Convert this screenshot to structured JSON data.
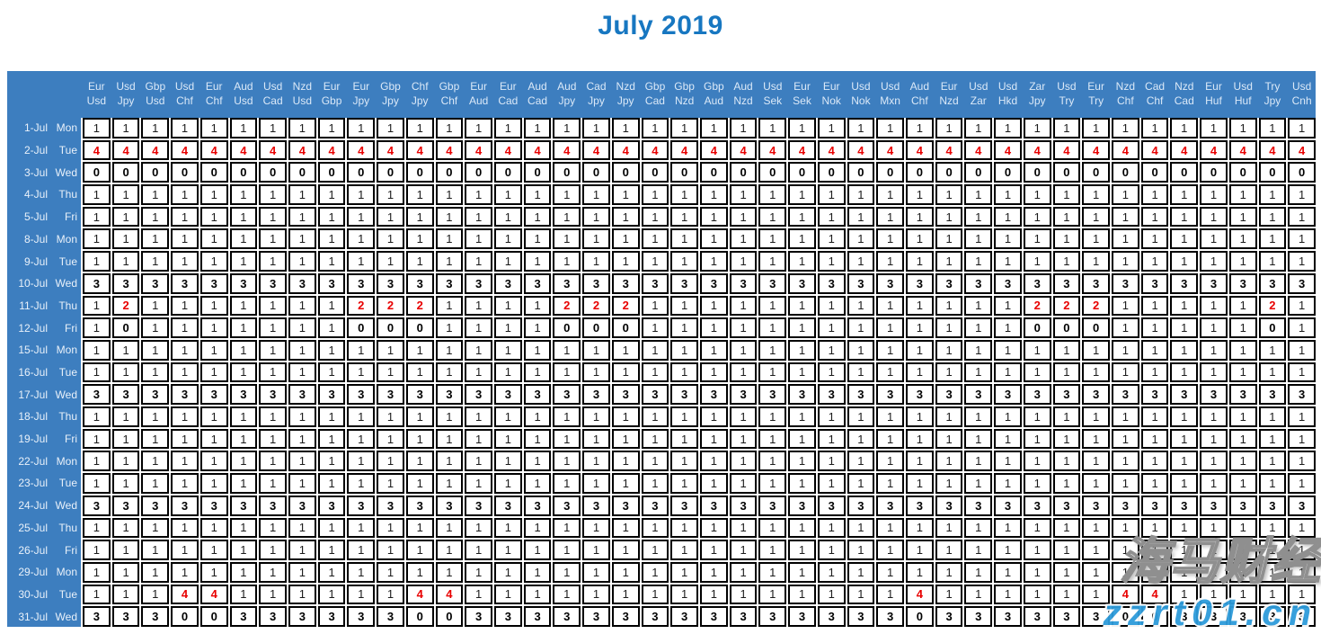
{
  "title": "July 2019",
  "colors": {
    "header_blue": "#3d7ebf",
    "title_blue": "#1777c1",
    "value_red": "#e80000",
    "value_black": "#000000",
    "header_text": "#dbe9f8",
    "cell_border": "#000000"
  },
  "watermark": {
    "cn": "海马财经",
    "site": "zzrt01.cn"
  },
  "table": {
    "pairs": [
      [
        "Eur",
        "Usd"
      ],
      [
        "Usd",
        "Jpy"
      ],
      [
        "Gbp",
        "Usd"
      ],
      [
        "Usd",
        "Chf"
      ],
      [
        "Eur",
        "Chf"
      ],
      [
        "Aud",
        "Usd"
      ],
      [
        "Usd",
        "Cad"
      ],
      [
        "Nzd",
        "Usd"
      ],
      [
        "Eur",
        "Gbp"
      ],
      [
        "Eur",
        "Jpy"
      ],
      [
        "Gbp",
        "Jpy"
      ],
      [
        "Chf",
        "Jpy"
      ],
      [
        "Gbp",
        "Chf"
      ],
      [
        "Eur",
        "Aud"
      ],
      [
        "Eur",
        "Cad"
      ],
      [
        "Aud",
        "Cad"
      ],
      [
        "Aud",
        "Jpy"
      ],
      [
        "Cad",
        "Jpy"
      ],
      [
        "Nzd",
        "Jpy"
      ],
      [
        "Gbp",
        "Cad"
      ],
      [
        "Gbp",
        "Nzd"
      ],
      [
        "Gbp",
        "Aud"
      ],
      [
        "Aud",
        "Nzd"
      ],
      [
        "Usd",
        "Sek"
      ],
      [
        "Eur",
        "Sek"
      ],
      [
        "Eur",
        "Nok"
      ],
      [
        "Usd",
        "Nok"
      ],
      [
        "Usd",
        "Mxn"
      ],
      [
        "Aud",
        "Chf"
      ],
      [
        "Eur",
        "Nzd"
      ],
      [
        "Usd",
        "Zar"
      ],
      [
        "Usd",
        "Hkd"
      ],
      [
        "Zar",
        "Jpy"
      ],
      [
        "Usd",
        "Try"
      ],
      [
        "Eur",
        "Try"
      ],
      [
        "Nzd",
        "Chf"
      ],
      [
        "Cad",
        "Chf"
      ],
      [
        "Nzd",
        "Cad"
      ],
      [
        "Eur",
        "Huf"
      ],
      [
        "Usd",
        "Huf"
      ],
      [
        "Try",
        "Jpy"
      ],
      [
        "Usd",
        "Cnh"
      ]
    ],
    "rows": [
      {
        "date": "1-Jul",
        "day": "Mon",
        "values": [
          1,
          1,
          1,
          1,
          1,
          1,
          1,
          1,
          1,
          1,
          1,
          1,
          1,
          1,
          1,
          1,
          1,
          1,
          1,
          1,
          1,
          1,
          1,
          1,
          1,
          1,
          1,
          1,
          1,
          1,
          1,
          1,
          1,
          1,
          1,
          1,
          1,
          1,
          1,
          1,
          1,
          1
        ]
      },
      {
        "date": "2-Jul",
        "day": "Tue",
        "values": [
          4,
          4,
          4,
          4,
          4,
          4,
          4,
          4,
          4,
          4,
          4,
          4,
          4,
          4,
          4,
          4,
          4,
          4,
          4,
          4,
          4,
          4,
          4,
          4,
          4,
          4,
          4,
          4,
          4,
          4,
          4,
          4,
          4,
          4,
          4,
          4,
          4,
          4,
          4,
          4,
          4,
          4
        ]
      },
      {
        "date": "3-Jul",
        "day": "Wed",
        "values": [
          0,
          0,
          0,
          0,
          0,
          0,
          0,
          0,
          0,
          0,
          0,
          0,
          0,
          0,
          0,
          0,
          0,
          0,
          0,
          0,
          0,
          0,
          0,
          0,
          0,
          0,
          0,
          0,
          0,
          0,
          0,
          0,
          0,
          0,
          0,
          0,
          0,
          0,
          0,
          0,
          0,
          0
        ]
      },
      {
        "date": "4-Jul",
        "day": "Thu",
        "values": [
          1,
          1,
          1,
          1,
          1,
          1,
          1,
          1,
          1,
          1,
          1,
          1,
          1,
          1,
          1,
          1,
          1,
          1,
          1,
          1,
          1,
          1,
          1,
          1,
          1,
          1,
          1,
          1,
          1,
          1,
          1,
          1,
          1,
          1,
          1,
          1,
          1,
          1,
          1,
          1,
          1,
          1
        ]
      },
      {
        "date": "5-Jul",
        "day": "Fri",
        "values": [
          1,
          1,
          1,
          1,
          1,
          1,
          1,
          1,
          1,
          1,
          1,
          1,
          1,
          1,
          1,
          1,
          1,
          1,
          1,
          1,
          1,
          1,
          1,
          1,
          1,
          1,
          1,
          1,
          1,
          1,
          1,
          1,
          1,
          1,
          1,
          1,
          1,
          1,
          1,
          1,
          1,
          1
        ]
      },
      {
        "date": "8-Jul",
        "day": "Mon",
        "values": [
          1,
          1,
          1,
          1,
          1,
          1,
          1,
          1,
          1,
          1,
          1,
          1,
          1,
          1,
          1,
          1,
          1,
          1,
          1,
          1,
          1,
          1,
          1,
          1,
          1,
          1,
          1,
          1,
          1,
          1,
          1,
          1,
          1,
          1,
          1,
          1,
          1,
          1,
          1,
          1,
          1,
          1
        ]
      },
      {
        "date": "9-Jul",
        "day": "Tue",
        "values": [
          1,
          1,
          1,
          1,
          1,
          1,
          1,
          1,
          1,
          1,
          1,
          1,
          1,
          1,
          1,
          1,
          1,
          1,
          1,
          1,
          1,
          1,
          1,
          1,
          1,
          1,
          1,
          1,
          1,
          1,
          1,
          1,
          1,
          1,
          1,
          1,
          1,
          1,
          1,
          1,
          1,
          1
        ]
      },
      {
        "date": "10-Jul",
        "day": "Wed",
        "values": [
          3,
          3,
          3,
          3,
          3,
          3,
          3,
          3,
          3,
          3,
          3,
          3,
          3,
          3,
          3,
          3,
          3,
          3,
          3,
          3,
          3,
          3,
          3,
          3,
          3,
          3,
          3,
          3,
          3,
          3,
          3,
          3,
          3,
          3,
          3,
          3,
          3,
          3,
          3,
          3,
          3,
          3
        ]
      },
      {
        "date": "11-Jul",
        "day": "Thu",
        "values": [
          1,
          2,
          1,
          1,
          1,
          1,
          1,
          1,
          1,
          2,
          2,
          2,
          1,
          1,
          1,
          1,
          2,
          2,
          2,
          1,
          1,
          1,
          1,
          1,
          1,
          1,
          1,
          1,
          1,
          1,
          1,
          1,
          2,
          2,
          2,
          1,
          1,
          1,
          1,
          1,
          2,
          1
        ]
      },
      {
        "date": "12-Jul",
        "day": "Fri",
        "values": [
          1,
          0,
          1,
          1,
          1,
          1,
          1,
          1,
          1,
          0,
          0,
          0,
          1,
          1,
          1,
          1,
          0,
          0,
          0,
          1,
          1,
          1,
          1,
          1,
          1,
          1,
          1,
          1,
          1,
          1,
          1,
          1,
          0,
          0,
          0,
          1,
          1,
          1,
          1,
          1,
          0,
          1
        ]
      },
      {
        "date": "15-Jul",
        "day": "Mon",
        "values": [
          1,
          1,
          1,
          1,
          1,
          1,
          1,
          1,
          1,
          1,
          1,
          1,
          1,
          1,
          1,
          1,
          1,
          1,
          1,
          1,
          1,
          1,
          1,
          1,
          1,
          1,
          1,
          1,
          1,
          1,
          1,
          1,
          1,
          1,
          1,
          1,
          1,
          1,
          1,
          1,
          1,
          1
        ]
      },
      {
        "date": "16-Jul",
        "day": "Tue",
        "values": [
          1,
          1,
          1,
          1,
          1,
          1,
          1,
          1,
          1,
          1,
          1,
          1,
          1,
          1,
          1,
          1,
          1,
          1,
          1,
          1,
          1,
          1,
          1,
          1,
          1,
          1,
          1,
          1,
          1,
          1,
          1,
          1,
          1,
          1,
          1,
          1,
          1,
          1,
          1,
          1,
          1,
          1
        ]
      },
      {
        "date": "17-Jul",
        "day": "Wed",
        "values": [
          3,
          3,
          3,
          3,
          3,
          3,
          3,
          3,
          3,
          3,
          3,
          3,
          3,
          3,
          3,
          3,
          3,
          3,
          3,
          3,
          3,
          3,
          3,
          3,
          3,
          3,
          3,
          3,
          3,
          3,
          3,
          3,
          3,
          3,
          3,
          3,
          3,
          3,
          3,
          3,
          3,
          3
        ]
      },
      {
        "date": "18-Jul",
        "day": "Thu",
        "values": [
          1,
          1,
          1,
          1,
          1,
          1,
          1,
          1,
          1,
          1,
          1,
          1,
          1,
          1,
          1,
          1,
          1,
          1,
          1,
          1,
          1,
          1,
          1,
          1,
          1,
          1,
          1,
          1,
          1,
          1,
          1,
          1,
          1,
          1,
          1,
          1,
          1,
          1,
          1,
          1,
          1,
          1
        ]
      },
      {
        "date": "19-Jul",
        "day": "Fri",
        "values": [
          1,
          1,
          1,
          1,
          1,
          1,
          1,
          1,
          1,
          1,
          1,
          1,
          1,
          1,
          1,
          1,
          1,
          1,
          1,
          1,
          1,
          1,
          1,
          1,
          1,
          1,
          1,
          1,
          1,
          1,
          1,
          1,
          1,
          1,
          1,
          1,
          1,
          1,
          1,
          1,
          1,
          1
        ]
      },
      {
        "date": "22-Jul",
        "day": "Mon",
        "values": [
          1,
          1,
          1,
          1,
          1,
          1,
          1,
          1,
          1,
          1,
          1,
          1,
          1,
          1,
          1,
          1,
          1,
          1,
          1,
          1,
          1,
          1,
          1,
          1,
          1,
          1,
          1,
          1,
          1,
          1,
          1,
          1,
          1,
          1,
          1,
          1,
          1,
          1,
          1,
          1,
          1,
          1
        ]
      },
      {
        "date": "23-Jul",
        "day": "Tue",
        "values": [
          1,
          1,
          1,
          1,
          1,
          1,
          1,
          1,
          1,
          1,
          1,
          1,
          1,
          1,
          1,
          1,
          1,
          1,
          1,
          1,
          1,
          1,
          1,
          1,
          1,
          1,
          1,
          1,
          1,
          1,
          1,
          1,
          1,
          1,
          1,
          1,
          1,
          1,
          1,
          1,
          1,
          1
        ]
      },
      {
        "date": "24-Jul",
        "day": "Wed",
        "values": [
          3,
          3,
          3,
          3,
          3,
          3,
          3,
          3,
          3,
          3,
          3,
          3,
          3,
          3,
          3,
          3,
          3,
          3,
          3,
          3,
          3,
          3,
          3,
          3,
          3,
          3,
          3,
          3,
          3,
          3,
          3,
          3,
          3,
          3,
          3,
          3,
          3,
          3,
          3,
          3,
          3,
          3
        ]
      },
      {
        "date": "25-Jul",
        "day": "Thu",
        "values": [
          1,
          1,
          1,
          1,
          1,
          1,
          1,
          1,
          1,
          1,
          1,
          1,
          1,
          1,
          1,
          1,
          1,
          1,
          1,
          1,
          1,
          1,
          1,
          1,
          1,
          1,
          1,
          1,
          1,
          1,
          1,
          1,
          1,
          1,
          1,
          1,
          1,
          1,
          1,
          1,
          1,
          1
        ]
      },
      {
        "date": "26-Jul",
        "day": "Fri",
        "values": [
          1,
          1,
          1,
          1,
          1,
          1,
          1,
          1,
          1,
          1,
          1,
          1,
          1,
          1,
          1,
          1,
          1,
          1,
          1,
          1,
          1,
          1,
          1,
          1,
          1,
          1,
          1,
          1,
          1,
          1,
          1,
          1,
          1,
          1,
          1,
          1,
          1,
          1,
          1,
          1,
          1,
          1
        ]
      },
      {
        "date": "29-Jul",
        "day": "Mon",
        "values": [
          1,
          1,
          1,
          1,
          1,
          1,
          1,
          1,
          1,
          1,
          1,
          1,
          1,
          1,
          1,
          1,
          1,
          1,
          1,
          1,
          1,
          1,
          1,
          1,
          1,
          1,
          1,
          1,
          1,
          1,
          1,
          1,
          1,
          1,
          1,
          1,
          1,
          1,
          1,
          1,
          1,
          1
        ]
      },
      {
        "date": "30-Jul",
        "day": "Tue",
        "values": [
          1,
          1,
          1,
          4,
          4,
          1,
          1,
          1,
          1,
          1,
          1,
          4,
          4,
          1,
          1,
          1,
          1,
          1,
          1,
          1,
          1,
          1,
          1,
          1,
          1,
          1,
          1,
          1,
          4,
          1,
          1,
          1,
          1,
          1,
          1,
          4,
          4,
          1,
          1,
          1,
          1,
          1
        ]
      },
      {
        "date": "31-Jul",
        "day": "Wed",
        "values": [
          3,
          3,
          3,
          0,
          0,
          3,
          3,
          3,
          3,
          3,
          3,
          0,
          0,
          3,
          3,
          3,
          3,
          3,
          3,
          3,
          3,
          3,
          3,
          3,
          3,
          3,
          3,
          3,
          0,
          3,
          3,
          3,
          3,
          3,
          3,
          0,
          0,
          3,
          3,
          3,
          3,
          3
        ]
      }
    ]
  }
}
